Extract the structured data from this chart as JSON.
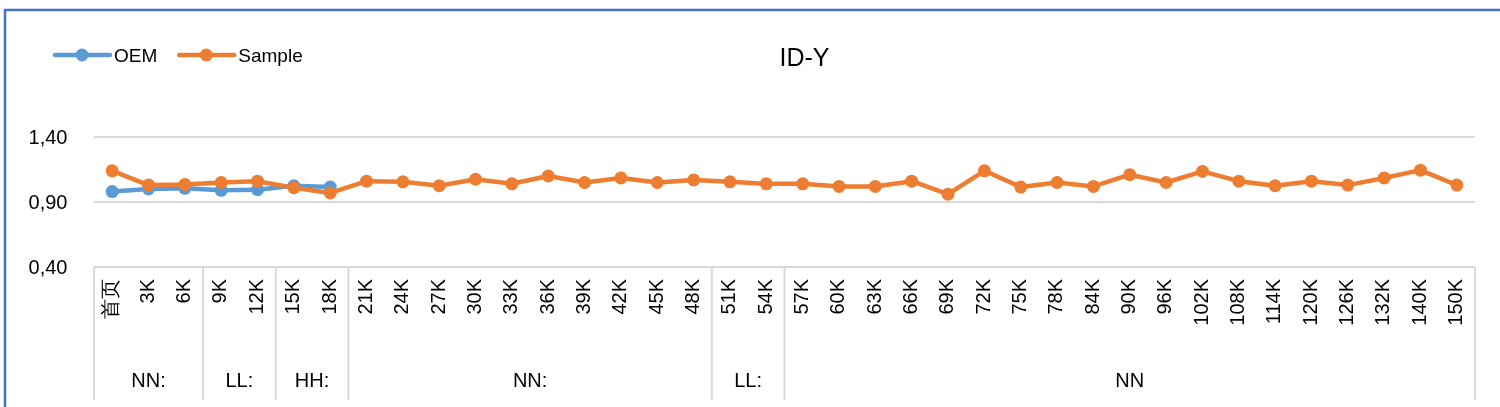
{
  "chart_data": {
    "type": "line",
    "title": "ID-Y",
    "categories": [
      "首页",
      "3K",
      "6K",
      "9K",
      "12K",
      "15K",
      "18K",
      "21K",
      "24K",
      "27K",
      "30K",
      "33K",
      "36K",
      "39K",
      "42K",
      "45K",
      "48K",
      "51K",
      "54K",
      "57K",
      "60K",
      "63K",
      "66K",
      "69K",
      "72K",
      "75K",
      "78K",
      "84K",
      "90K",
      "96K",
      "102K",
      "108K",
      "114K",
      "120K",
      "126K",
      "132K",
      "140K",
      "150K"
    ],
    "series": [
      {
        "name": "OEM",
        "color": "#5b9bd5",
        "values": [
          0.98,
          1.0,
          1.005,
          0.99,
          0.995,
          1.025,
          1.015,
          null,
          null,
          null,
          null,
          null,
          null,
          null,
          null,
          null,
          null,
          null,
          null,
          null,
          null,
          null,
          null,
          null,
          null,
          null,
          null,
          null,
          null,
          null,
          null,
          null,
          null,
          null,
          null,
          null,
          null,
          null
        ]
      },
      {
        "name": "Sample",
        "color": "#ed7d31",
        "values": [
          1.14,
          1.03,
          1.035,
          1.05,
          1.06,
          1.01,
          0.97,
          1.06,
          1.055,
          1.025,
          1.075,
          1.04,
          1.1,
          1.05,
          1.085,
          1.05,
          1.07,
          1.055,
          1.04,
          1.04,
          1.02,
          1.02,
          1.06,
          0.96,
          1.14,
          1.015,
          1.05,
          1.02,
          1.11,
          1.05,
          1.135,
          1.06,
          1.025,
          1.06,
          1.03,
          1.085,
          1.145,
          1.03
        ]
      }
    ],
    "ylim": [
      0.4,
      1.4
    ],
    "yticks": [
      {
        "value": 0.4,
        "label": "0,40"
      },
      {
        "value": 0.9,
        "label": "0,90"
      },
      {
        "value": 1.4,
        "label": "1,40"
      }
    ],
    "grid": "y",
    "legend": "top left",
    "marker": "circle",
    "annotations": [
      "NN:",
      "LL:",
      "HH:",
      "NN:",
      "LL:",
      "NN"
    ]
  }
}
